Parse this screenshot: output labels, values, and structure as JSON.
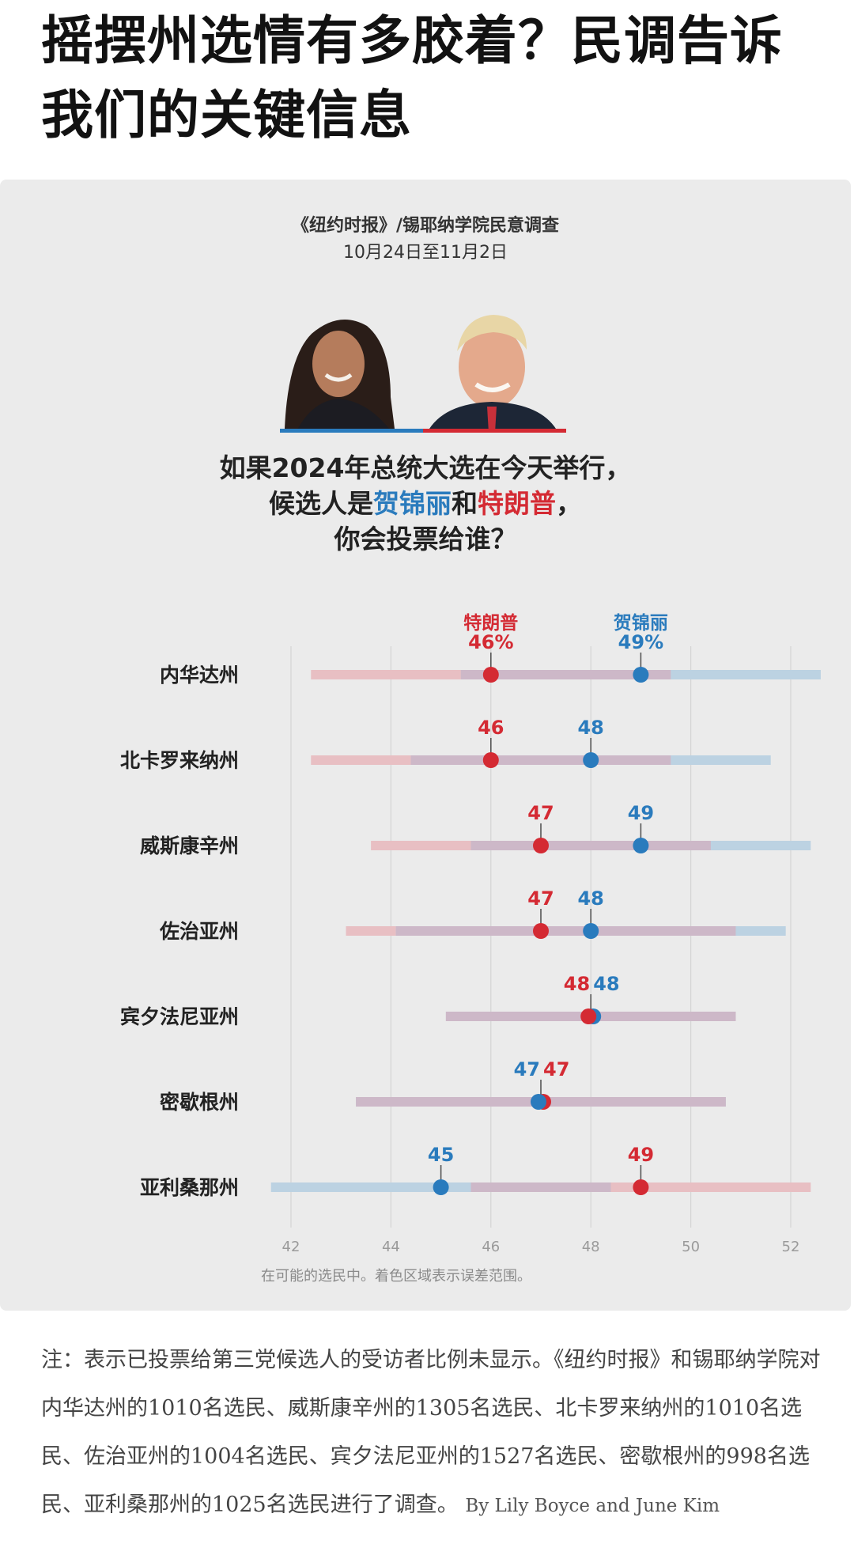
{
  "headline": "摇摆州选情有多胶着？民调告诉我们的关键信息",
  "source": {
    "line1": "《纽约时报》/锡耶纳学院民意调查",
    "line2": "10月24日至11月2日"
  },
  "question": {
    "pre": "如果2024年总统大选在今天举行，",
    "mid_pre": "候选人是",
    "harris": "贺锦丽",
    "and": "和",
    "trump": "特朗普",
    "mid_post": "，",
    "post": "你会投票给谁？"
  },
  "colors": {
    "trump": "#d42a33",
    "harris": "#2a7bbd",
    "trump_band": "#e8bfc3",
    "harris_band": "#bcd2e2",
    "overlap_band": "#cdb8c8"
  },
  "chart_data": {
    "type": "dot-range",
    "series_labels": {
      "trump": "特朗普",
      "harris": "贺锦丽"
    },
    "header_values": {
      "trump": "46%",
      "harris": "49%"
    },
    "xlim": [
      41.6,
      52.8
    ],
    "xticks": [
      42,
      44,
      46,
      48,
      50,
      52
    ],
    "footnote": "在可能的选民中。着色区域表示误差范围。",
    "states": [
      {
        "name": "内华达州",
        "trump": 46,
        "harris": 49,
        "trump_lo": 42.4,
        "trump_hi": 49.6,
        "harris_lo": 45.4,
        "harris_hi": 52.6,
        "labels": {
          "trump": "46%",
          "harris": "49%"
        }
      },
      {
        "name": "北卡罗来纳州",
        "trump": 46,
        "harris": 48,
        "trump_lo": 42.4,
        "trump_hi": 49.6,
        "harris_lo": 44.4,
        "harris_hi": 51.6,
        "labels": {
          "trump": "46",
          "harris": "48"
        }
      },
      {
        "name": "威斯康辛州",
        "trump": 47,
        "harris": 49,
        "trump_lo": 43.6,
        "trump_hi": 50.4,
        "harris_lo": 45.6,
        "harris_hi": 52.4,
        "labels": {
          "trump": "47",
          "harris": "49"
        }
      },
      {
        "name": "佐治亚州",
        "trump": 47,
        "harris": 48,
        "trump_lo": 43.1,
        "trump_hi": 50.9,
        "harris_lo": 44.1,
        "harris_hi": 51.9,
        "labels": {
          "trump": "47",
          "harris": "48"
        }
      },
      {
        "name": "宾夕法尼亚州",
        "trump": 48,
        "harris": 48,
        "trump_lo": 45.1,
        "trump_hi": 50.9,
        "harris_lo": 45.1,
        "harris_hi": 50.9,
        "labels": {
          "trump": "48",
          "harris": "48"
        }
      },
      {
        "name": "密歇根州",
        "trump": 47,
        "harris": 47,
        "trump_lo": 43.3,
        "trump_hi": 50.7,
        "harris_lo": 43.3,
        "harris_hi": 50.7,
        "labels": {
          "trump": "47",
          "harris": "47"
        }
      },
      {
        "name": "亚利桑那州",
        "trump": 49,
        "harris": 45,
        "trump_lo": 45.6,
        "trump_hi": 52.4,
        "harris_lo": 41.6,
        "harris_hi": 48.4,
        "labels": {
          "trump": "49",
          "harris": "45"
        }
      }
    ]
  },
  "note": {
    "text": "注：表示已投票给第三党候选人的受访者比例未显示。《纽约时报》和锡耶纳学院对内华达州的1010名选民、威斯康辛州的1305名选民、北卡罗来纳州的1010名选民、佐治亚州的1004名选民、宾夕法尼亚州的1527名选民、密歇根州的998名选民、亚利桑那州的1025名选民进行了调查。",
    "byline": "By Lily Boyce and June Kim"
  }
}
